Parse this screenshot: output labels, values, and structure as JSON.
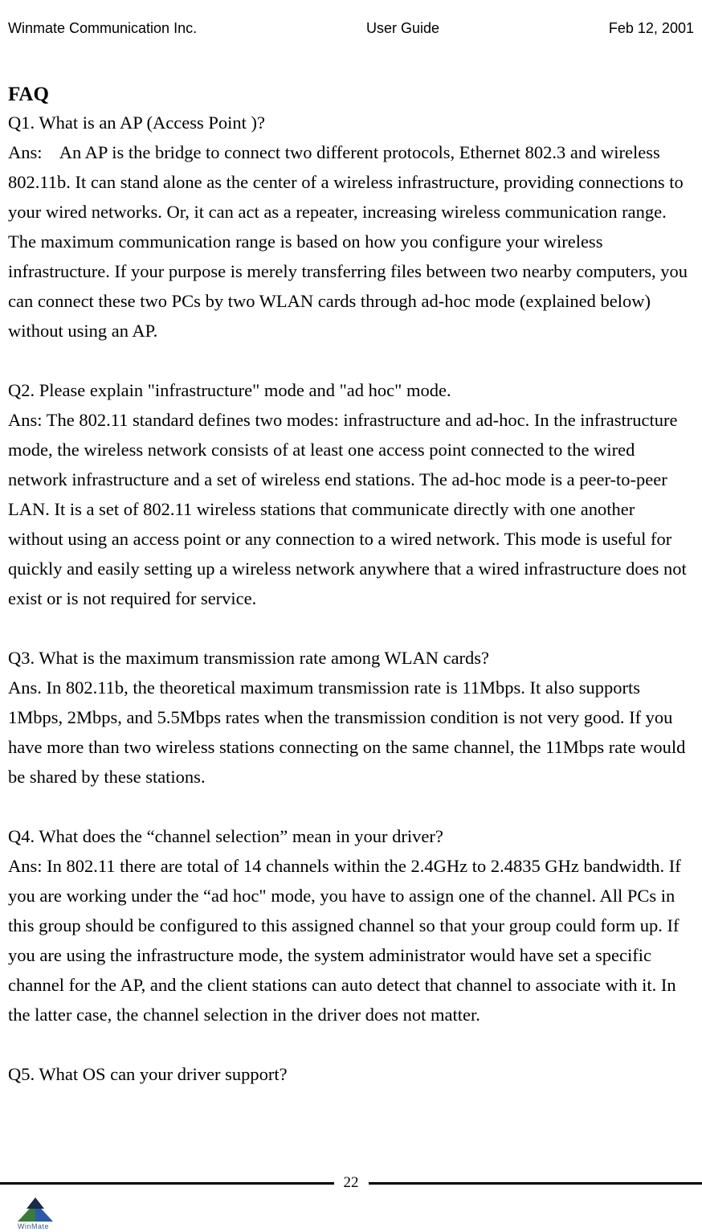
{
  "header": {
    "left": "Winmate Communication Inc.",
    "center": "User Guide",
    "right": "Feb 12, 2001"
  },
  "title": "FAQ",
  "q1": {
    "q": "Q1. What is an AP (Access Point )?",
    "a": "Ans:    An AP is the bridge to connect two different protocols, Ethernet 802.3 and wireless 802.11b. It can stand alone as the center of a wireless infrastructure, providing connections to your wired networks. Or, it can act as a repeater, increasing wireless communication range. The maximum communication range is based on how you configure your wireless infrastructure. If your purpose is merely transferring files between two nearby computers, you can connect these two PCs by two WLAN cards through ad-hoc mode (explained below) without using an AP."
  },
  "q2": {
    "q": "Q2. Please explain \"infrastructure\" mode and \"ad hoc\" mode.",
    "a": "Ans: The 802.11 standard defines two modes: infrastructure and ad-hoc. In the infrastructure mode, the wireless network consists of at least one access point connected to the wired network infrastructure and a set of wireless end stations. The ad-hoc mode is a peer-to-peer LAN. It is a set of 802.11 wireless stations that communicate directly with one another without using an access point or any connection to a wired network. This mode is useful for quickly and easily setting up a wireless network anywhere that a wired infrastructure does not exist or is not required for service."
  },
  "q3": {
    "q": "Q3. What is the maximum transmission rate among WLAN cards?",
    "a": "Ans. In 802.11b, the theoretical maximum transmission rate is 11Mbps. It also supports 1Mbps, 2Mbps, and 5.5Mbps rates when the transmission condition is not very good. If you have more than two wireless stations connecting on the same channel, the 11Mbps rate would be shared by these stations."
  },
  "q4": {
    "q": "Q4. What does the “channel selection” mean in your driver?",
    "a": "Ans: In 802.11 there are total of 14 channels within the 2.4GHz to 2.4835 GHz bandwidth.   If you are working under the “ad hoc\" mode, you have to assign one of the channel. All PCs in this group should be configured to this assigned channel so that your group could form up. If you are using the infrastructure mode, the system administrator would have set a specific channel for the AP, and the client stations can auto detect that channel to associate with it. In the latter case, the channel selection in the driver does not matter."
  },
  "q5": {
    "q": "Q5. What OS can your driver support?"
  },
  "footer": {
    "page_number": "22",
    "logo_text": "WinMate"
  }
}
